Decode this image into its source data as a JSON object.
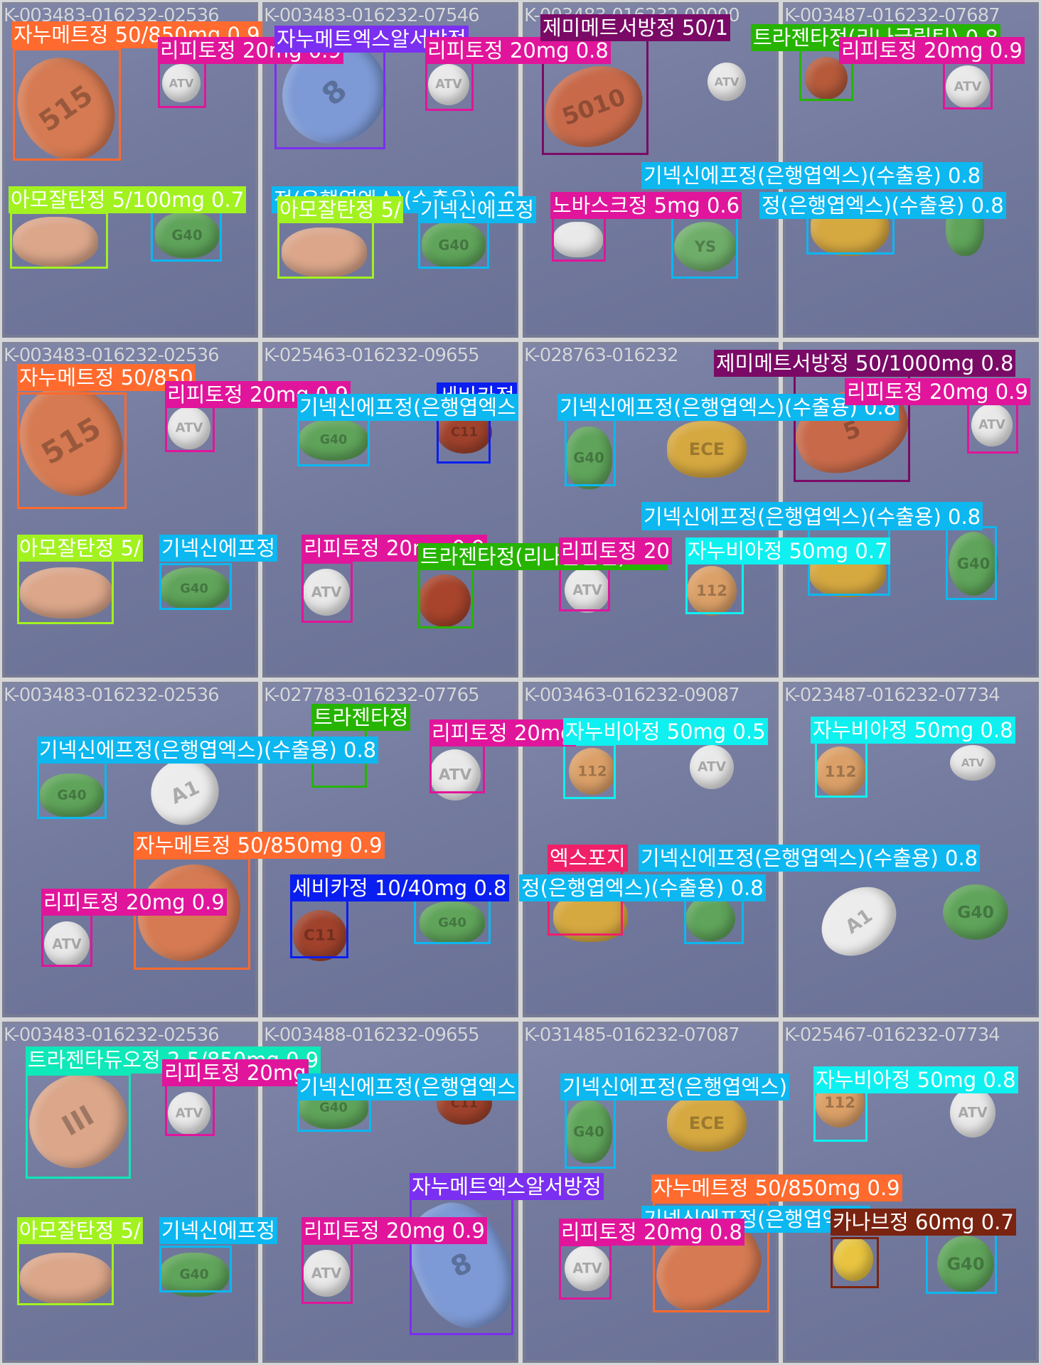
{
  "colors": {
    "orange": "#ff6a2e",
    "magenta": "#e0159b",
    "purple": "#7b2ff0",
    "green": "#26b400",
    "lime": "#a2f220",
    "skyblue": "#0db7f0",
    "darkpurple": "#7a0a66",
    "pink": "#f02068",
    "blue": "#0a1ef0",
    "mint": "#0fe8b8",
    "cyan": "#0ff0f0",
    "brown": "#7a2310"
  },
  "tile_ids": [
    "K-003483-016232-02536",
    "K-003483-016232-07546",
    "K-003483-016232-00000",
    "K-003487-016232-07687",
    "K-003483-016232-02536",
    "K-025463-016232-09655",
    "K-028763-016232",
    "",
    "K-003483-016232-02536",
    "K-027783-016232-07765",
    "K-003463-016232-09087",
    "K-023487-016232-07734",
    "K-003483-016232-02536",
    "K-003488-016232-09655",
    "K-031485-016232-07087",
    "K-025467-016232-07734"
  ],
  "detections": [
    {
      "text": "자누메트정 50/850mg 0.9",
      "color": "orange"
    },
    {
      "text": "리피토정 20mg 0.9",
      "color": "magenta"
    },
    {
      "text": "자누메트엑스알서방정",
      "color": "purple"
    },
    {
      "text": "리피토정 20mg 0.8",
      "color": "magenta"
    },
    {
      "text": "제미메트서방정 50/1",
      "color": "darkpurple"
    },
    {
      "text": "트라젠타정(리나글립틴) 0.8",
      "color": "green"
    },
    {
      "text": "리피토정 20mg 0.9",
      "color": "magenta"
    },
    {
      "text": "아모잘탄정 5/100mg 0.7",
      "color": "lime"
    },
    {
      "text": "정(은행엽엑스)(수출용) 0.8",
      "color": "skyblue"
    },
    {
      "text": "아모잘탄정 5/",
      "color": "lime"
    },
    {
      "text": "기넥신에프정",
      "color": "skyblue"
    },
    {
      "text": "노바스크정 5mg 0.6",
      "color": "magenta"
    },
    {
      "text": "기넥신에프정(은행엽엑스)(수출용) 0.8",
      "color": "skyblue"
    },
    {
      "text": "정(은행엽엑스)(수출용) 0.8",
      "color": "skyblue"
    },
    {
      "text": "자누메트정 50/850",
      "color": "orange"
    },
    {
      "text": "리피토정 20mg 0.9",
      "color": "magenta"
    },
    {
      "text": "세비카정",
      "color": "blue"
    },
    {
      "text": "기넥신에프정(은행엽엑스",
      "color": "skyblue"
    },
    {
      "text": "기넥신에프정(은행엽엑스)(수출용) 0.8",
      "color": "skyblue"
    },
    {
      "text": "제미메트서방정 50/1000mg 0.8",
      "color": "darkpurple"
    },
    {
      "text": "리피토정 20mg 0.9",
      "color": "magenta"
    },
    {
      "text": "기넥신에프정(은행엽엑스)(수출용) 0.8",
      "color": "skyblue"
    },
    {
      "text": "아모잘탄정 5/",
      "color": "lime"
    },
    {
      "text": "기넥신에프정",
      "color": "skyblue"
    },
    {
      "text": "리피토정 20mg 0.9",
      "color": "magenta"
    },
    {
      "text": "트라젠타정(리나글립틴) 0.8",
      "color": "green"
    },
    {
      "text": "리피토정 20",
      "color": "magenta"
    },
    {
      "text": "자누비아정 50mg 0.7",
      "color": "cyan"
    },
    {
      "text": "기넥신에프정(은행엽엑스)(수출용) 0.8",
      "color": "skyblue"
    },
    {
      "text": "트라젠타정",
      "color": "green"
    },
    {
      "text": "리피토정 20mg",
      "color": "magenta"
    },
    {
      "text": "자누비아정 50mg 0.5",
      "color": "cyan"
    },
    {
      "text": "자누비아정 50mg 0.8",
      "color": "cyan"
    },
    {
      "text": "기넥신에프정(은행엽엑스)(수출용) 0.8",
      "color": "skyblue"
    },
    {
      "text": "자누메트정 50/850mg 0.9",
      "color": "orange"
    },
    {
      "text": "리피토정 20mg 0.9",
      "color": "magenta"
    },
    {
      "text": "세비카정 10/40mg 0.8",
      "color": "blue"
    },
    {
      "text": "정(은행엽엑스)(수출용) 0.8",
      "color": "skyblue"
    },
    {
      "text": "엑스포지",
      "color": "pink"
    },
    {
      "text": "기넥신에프정(은행엽엑스)(수출용) 0.8",
      "color": "skyblue"
    },
    {
      "text": "트라젠타듀오정 2.5/850mg 0.9",
      "color": "mint"
    },
    {
      "text": "리피토정 20mg",
      "color": "magenta"
    },
    {
      "text": "기넥신에프정(은행엽엑스",
      "color": "skyblue"
    },
    {
      "text": "기넥신에프정(은행엽엑스)",
      "color": "skyblue"
    },
    {
      "text": "자누비아정 50mg 0.8",
      "color": "cyan"
    },
    {
      "text": "아모잘탄정 5/",
      "color": "lime"
    },
    {
      "text": "기넥신에프정",
      "color": "skyblue"
    },
    {
      "text": "리피토정 20mg 0.9",
      "color": "magenta"
    },
    {
      "text": "자누메트엑스알서방정",
      "color": "purple"
    },
    {
      "text": "자누메트정 50/850mg 0.9",
      "color": "orange"
    },
    {
      "text": "기넥신에프정(은행엽엑스)",
      "color": "skyblue"
    },
    {
      "text": "리피토정 20mg 0.8",
      "color": "magenta"
    },
    {
      "text": "카나브정 60mg 0.7",
      "color": "brown"
    }
  ]
}
